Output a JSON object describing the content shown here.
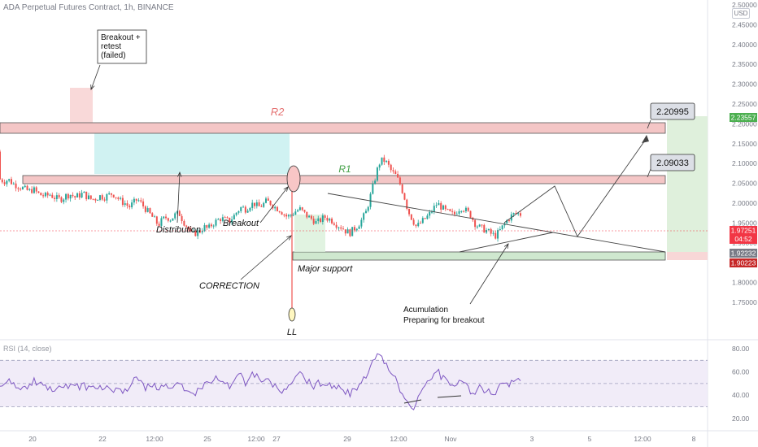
{
  "header": {
    "title": "ADA Perpetual Futures Contract, 1h, BINANCE",
    "currency": "USD"
  },
  "chart_data": [
    {
      "type": "candlestick",
      "title": "ADA Perpetual Futures Contract, 1h, BINANCE",
      "y_ticks": [
        "2.50000",
        "2.45000",
        "2.40000",
        "2.35000",
        "2.30000",
        "2.25000",
        "2.20000",
        "2.15000",
        "2.10000",
        "2.05000",
        "2.00000",
        "1.95000",
        "1.90000",
        "1.85000",
        "1.80000",
        "1.75000"
      ],
      "ylim": [
        1.735,
        2.52
      ],
      "x_ticks": [
        "20",
        "22",
        "12:00",
        "25",
        "12:00",
        "27",
        "29",
        "12:00",
        "Nov",
        "3",
        "5",
        "12:00",
        "8"
      ],
      "price_tags": [
        {
          "text": "2.23557",
          "color": "#4caf50"
        },
        {
          "text": "1.97251",
          "sub": "04:52",
          "color": "#f23645"
        },
        {
          "text": "1.92232",
          "color": "#787b86"
        },
        {
          "text": "1.90223",
          "color": "#c62828"
        }
      ],
      "trend_path": [
        2.06,
        2.055,
        2.06,
        2.05,
        2.045,
        2.04,
        2.035,
        2.03,
        2.035,
        2.025,
        2.02,
        2.018,
        2.022,
        2.015,
        2.01,
        2.012,
        2.02,
        2.022,
        2.015,
        2.02,
        2.025,
        2.015,
        2.01,
        2.012,
        2.018,
        2.015,
        2.02,
        2.025,
        2.016,
        2.005,
        2.0,
        1.99,
        2.0,
        2.01,
        1.998,
        1.985,
        1.972,
        1.96,
        1.945,
        1.958,
        1.965,
        1.96,
        1.97,
        1.975,
        1.955,
        1.94,
        1.92,
        1.925,
        1.93,
        1.94,
        1.935,
        1.948,
        1.955,
        1.962,
        1.958,
        1.955,
        1.965,
        1.98,
        1.99,
        1.985,
        1.995,
        2.0,
        1.99,
        1.995,
        2.005,
        2.0,
        1.99,
        1.985,
        1.975,
        1.965,
        1.972,
        1.98,
        1.985,
        1.975,
        1.965,
        1.96,
        1.95,
        1.958,
        1.965,
        1.96,
        1.955,
        1.945,
        1.94,
        1.93,
        1.925,
        1.935,
        1.945,
        1.96,
        1.98,
        2.02,
        2.06,
        2.1,
        2.11,
        2.1,
        2.08,
        2.07,
        2.05,
        2.02,
        1.98,
        1.96,
        1.94,
        1.95,
        1.96,
        1.97,
        1.985,
        2.0,
        1.99,
        1.98,
        1.975,
        1.97,
        1.985,
        1.99,
        1.98,
        1.97,
        1.95,
        1.94,
        1.935,
        1.93,
        1.922,
        1.918,
        1.93,
        1.945,
        1.96,
        1.97,
        1.975,
        1.972
      ],
      "annotations": [
        {
          "text": "Breakout + retest (failed)"
        },
        {
          "text": "R2"
        },
        {
          "text": "R1"
        },
        {
          "text": "Distribution"
        },
        {
          "text": "Breakout"
        },
        {
          "text": "CORRECTION"
        },
        {
          "text": "Major support"
        },
        {
          "text": "LL"
        },
        {
          "text": "Acumulation"
        },
        {
          "text": "Preparing for breakout"
        },
        {
          "text": "2.20995"
        },
        {
          "text": "2.09033"
        }
      ]
    },
    {
      "type": "line",
      "title": "RSI (14, close)",
      "y_ticks": [
        "80.00",
        "60.00",
        "40.00",
        "20.00"
      ],
      "ylim": [
        12,
        92
      ],
      "bands": [
        70,
        50,
        30
      ],
      "color": "#7e57c2"
    }
  ],
  "colors": {
    "up": "#26a69a",
    "down": "#ef5350",
    "resistance_fill": "#f4c6c6",
    "support_fill": "#cfe8cf",
    "range_fill": "#c8f0f0"
  }
}
